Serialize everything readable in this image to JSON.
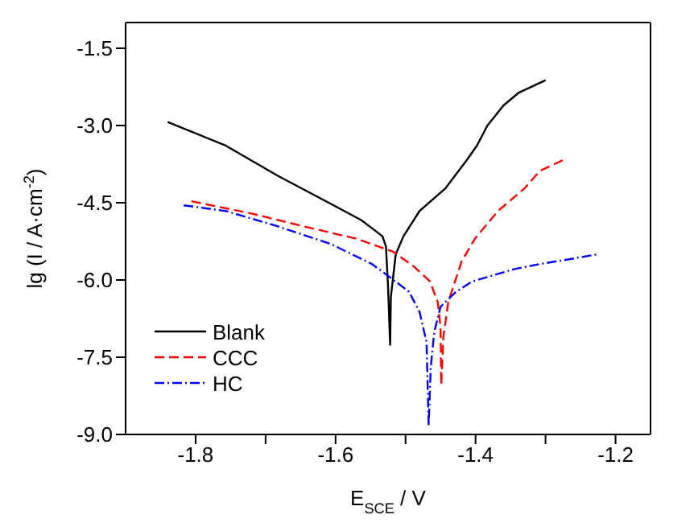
{
  "chart_data": {
    "type": "line",
    "xlabel": "E$_{SCE}$ / V",
    "ylabel": "lg (I / A·cm$^{-2}$)",
    "xlim": [
      -1.9,
      -1.15
    ],
    "ylim": [
      -9,
      -1
    ],
    "xticks": [
      {
        "value": -1.8,
        "label": "-1.8"
      },
      {
        "value": -1.7,
        "label": null
      },
      {
        "value": -1.6,
        "label": "-1.6"
      },
      {
        "value": -1.5,
        "label": null
      },
      {
        "value": -1.4,
        "label": "-1.4"
      },
      {
        "value": -1.3,
        "label": null
      },
      {
        "value": -1.2,
        "label": "-1.2"
      }
    ],
    "yticks": [
      {
        "value": -1.5,
        "label": "-1.5"
      },
      {
        "value": -3,
        "label": "-3.0"
      },
      {
        "value": -4.5,
        "label": "-4.5"
      },
      {
        "value": -6,
        "label": "-6.0"
      },
      {
        "value": -7.5,
        "label": "-7.5"
      },
      {
        "value": -9,
        "label": "-9.0"
      }
    ],
    "legend": "bottom left",
    "marker": "none",
    "series": [
      {
        "name": "Blank",
        "color": "#000000",
        "line_style": "solid",
        "x": [
          -1.84,
          -1.757,
          -1.682,
          -1.607,
          -1.563,
          -1.533,
          -1.528,
          -1.525,
          -1.522,
          -1.521,
          -1.514,
          -1.503,
          -1.48,
          -1.443,
          -1.413,
          -1.398,
          -1.383,
          -1.36,
          -1.338,
          -1.3
        ],
        "values": [
          -2.93,
          -3.39,
          -3.98,
          -4.52,
          -4.84,
          -5.15,
          -5.35,
          -6.13,
          -7.26,
          -6.33,
          -5.5,
          -5.15,
          -4.66,
          -4.22,
          -3.68,
          -3.39,
          -3.0,
          -2.61,
          -2.36,
          -2.12
        ]
      },
      {
        "name": "CCC",
        "color": "#ff0000",
        "line_style": "dashed",
        "x": [
          -1.806,
          -1.72,
          -1.645,
          -1.57,
          -1.518,
          -1.488,
          -1.465,
          -1.454,
          -1.45,
          -1.449,
          -1.446,
          -1.439,
          -1.42,
          -1.401,
          -1.368,
          -1.33,
          -1.308,
          -1.27
        ],
        "values": [
          -4.47,
          -4.71,
          -4.96,
          -5.2,
          -5.45,
          -5.74,
          -6.03,
          -6.43,
          -6.92,
          -8.04,
          -7.11,
          -6.43,
          -5.64,
          -5.2,
          -4.66,
          -4.22,
          -3.88,
          -3.64
        ]
      },
      {
        "name": "HC",
        "color": "#0000ff",
        "line_style": "dashdot",
        "x": [
          -1.817,
          -1.757,
          -1.682,
          -1.607,
          -1.548,
          -1.518,
          -1.495,
          -1.48,
          -1.47,
          -1.467,
          -1.464,
          -1.459,
          -1.45,
          -1.428,
          -1.405,
          -1.345,
          -1.308,
          -1.263,
          -1.225
        ],
        "values": [
          -4.55,
          -4.66,
          -4.96,
          -5.3,
          -5.69,
          -5.99,
          -6.23,
          -6.62,
          -7.21,
          -8.83,
          -7.7,
          -7.01,
          -6.52,
          -6.23,
          -6.03,
          -5.79,
          -5.69,
          -5.59,
          -5.5
        ]
      }
    ]
  }
}
